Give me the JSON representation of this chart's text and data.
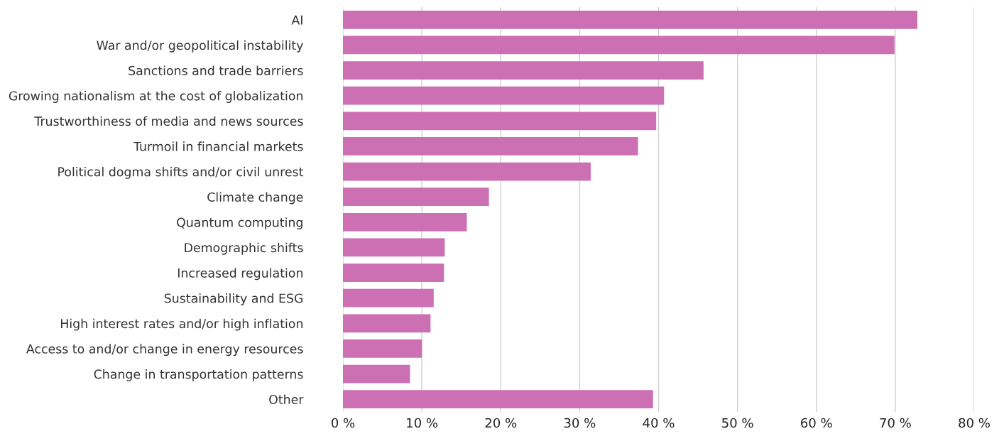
{
  "chart_data": {
    "type": "bar",
    "orientation": "horizontal",
    "categories": [
      "AI",
      "War and/or geopolitical instability",
      "Sanctions and trade barriers",
      "Growing nationalism at the cost of globalization",
      "Trustworthiness of media and news sources",
      "Turmoil in financial markets",
      "Political dogma shifts and/or civil unrest",
      "Climate change",
      "Quantum computing",
      "Demographic shifts",
      "Increased regulation",
      "Sustainability and ESG",
      "High interest rates and/or high inflation",
      "Access to and/or change in energy resources",
      "Change in transportation patterns",
      "Other"
    ],
    "values": [
      72.8,
      69.9,
      45.7,
      40.7,
      39.7,
      37.4,
      31.4,
      18.5,
      15.7,
      12.9,
      12.8,
      11.5,
      11.1,
      10.0,
      8.5,
      39.3
    ],
    "color": "#cc6fb3",
    "xlim": [
      0,
      80
    ],
    "xticks": [
      {
        "value": 0,
        "label": "0 %"
      },
      {
        "value": 10,
        "label": "10 %"
      },
      {
        "value": 20,
        "label": "20 %"
      },
      {
        "value": 30,
        "label": "30 %"
      },
      {
        "value": 40,
        "label": "40 %"
      },
      {
        "value": 50,
        "label": "50 %"
      },
      {
        "value": 60,
        "label": "60 %"
      },
      {
        "value": 70,
        "label": "70 %"
      },
      {
        "value": 80,
        "label": "80 %"
      }
    ],
    "grid": "x"
  }
}
